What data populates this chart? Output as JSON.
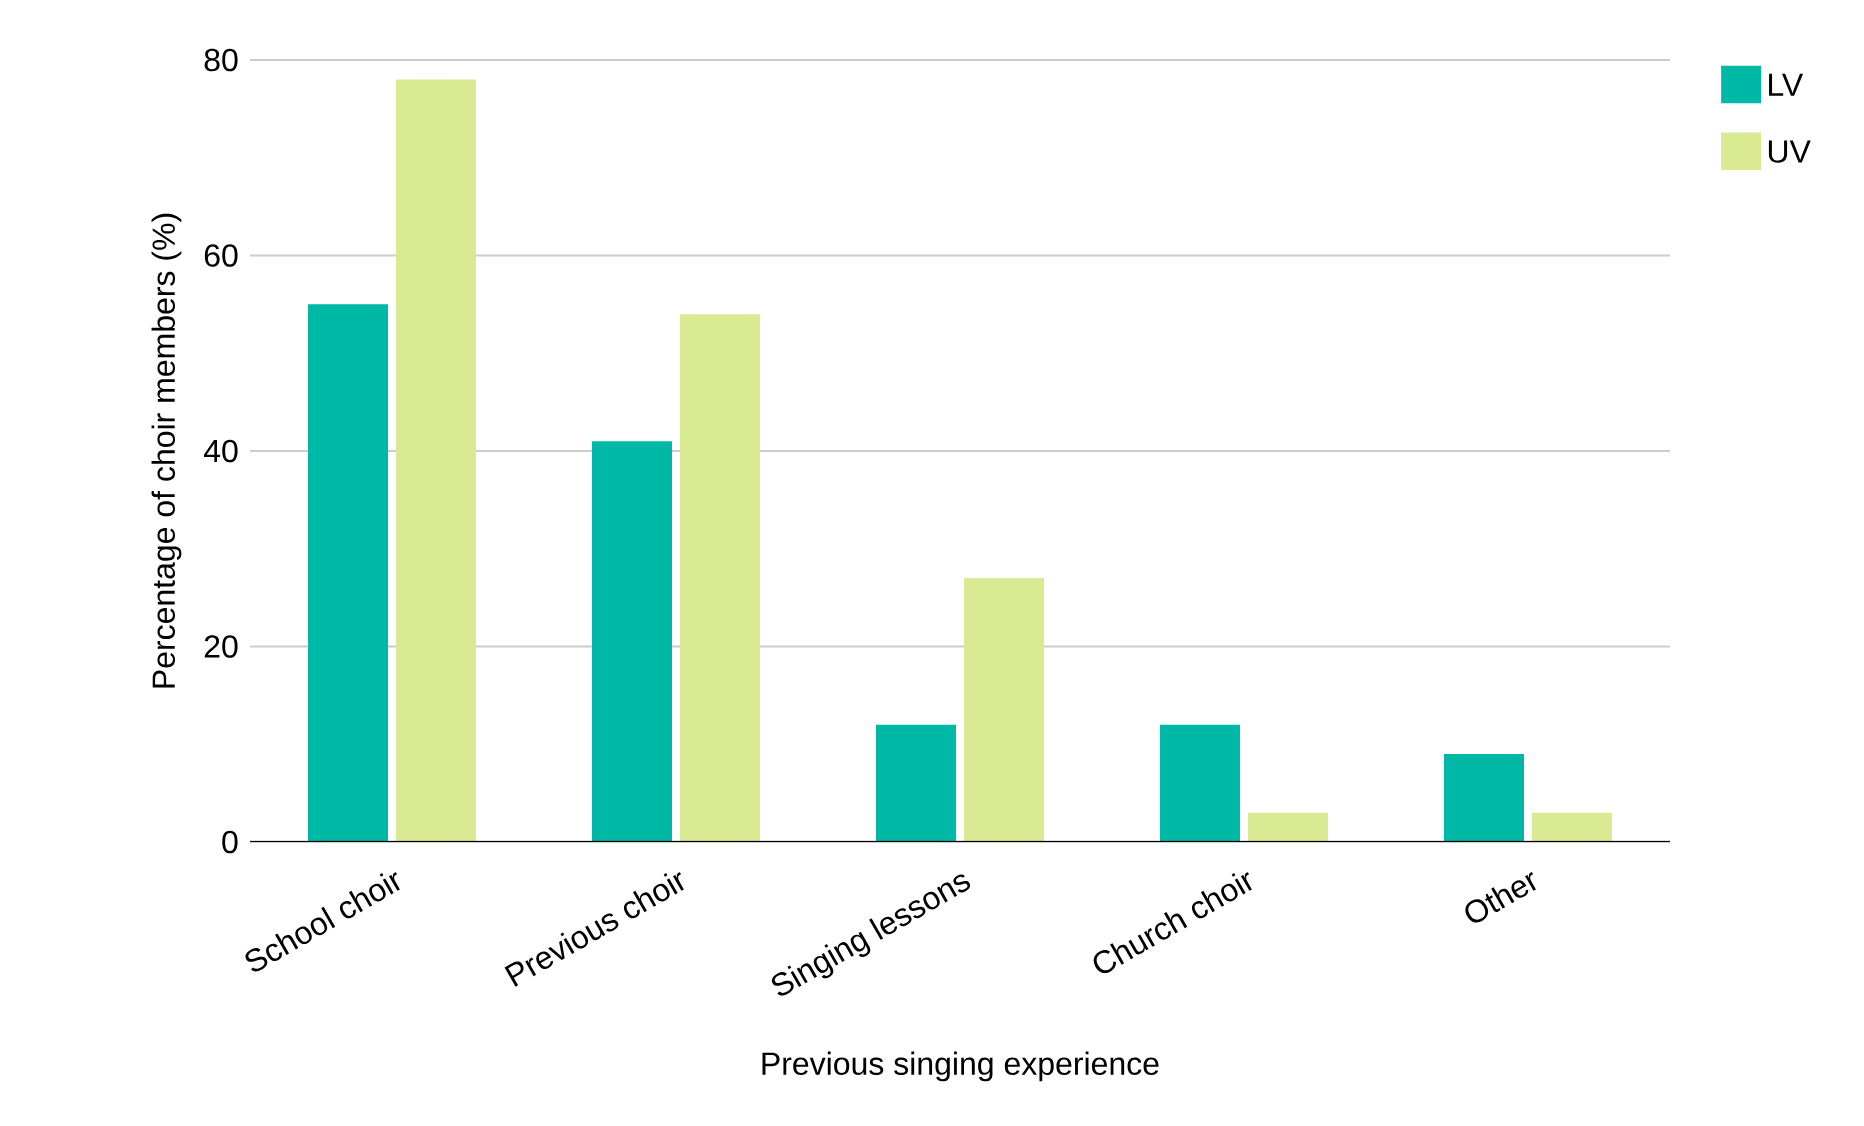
{
  "chart_data": {
    "type": "bar",
    "xlabel": "Previous singing experience",
    "ylabel": "Percentage of choir members (%)",
    "categories": [
      "School choir",
      "Previous choir",
      "Singing lessons",
      "Church choir",
      "Other"
    ],
    "series": [
      {
        "name": "LV",
        "color": "#00b8a6",
        "values": [
          55,
          41,
          12,
          12,
          9
        ]
      },
      {
        "name": "UV",
        "color": "#d9ea92",
        "values": [
          78,
          54,
          27,
          3,
          3
        ]
      }
    ],
    "ylim": [
      0,
      80
    ],
    "yticks": [
      0,
      20,
      40,
      60,
      80
    ],
    "grid": "y",
    "legend": "top right"
  }
}
